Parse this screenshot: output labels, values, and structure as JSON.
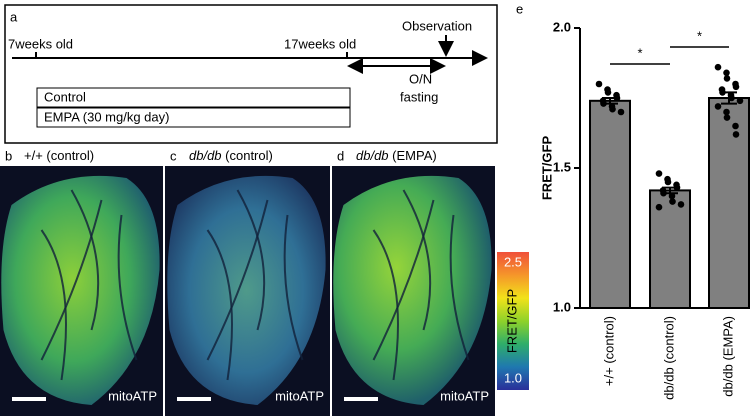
{
  "panel_a": {
    "label": "a",
    "start": "7weeks old",
    "mid": "17weeks old",
    "end": "Observation",
    "fasting_top": "O/N",
    "fasting_bottom": "fasting",
    "groups": [
      "Control",
      "EMPA (30 mg/kg day)"
    ]
  },
  "panels": [
    {
      "label": "b",
      "em": "",
      "text": "+/+ (control)",
      "footer": "mitoATP"
    },
    {
      "label": "c",
      "em": "db/db",
      "text": " (control)",
      "footer": "mitoATP"
    },
    {
      "label": "d",
      "em": "db/db",
      "text": " (EMPA)",
      "footer": "mitoATP"
    }
  ],
  "colorbar": {
    "title": "FRET/GFP",
    "ticks": [
      2.5,
      {
        "value": 1,
        "label": "1.0"
      }
    ],
    "colors": [
      "#2a2f9a",
      "#1f78b0",
      "#2fae6a",
      "#8fd22a",
      "#f2e21a",
      "#f5962a",
      "#f0503a"
    ]
  },
  "chart_data": {
    "type": "bar",
    "label": "e",
    "ylabel": "FRET/GFP",
    "categories": [
      "+/+ (control)",
      "db/db (control)",
      "db/db (EMPA)"
    ],
    "values": [
      1.74,
      1.42,
      1.75
    ],
    "errors": [
      0.01,
      0.01,
      0.02
    ],
    "color": "#808080",
    "points": [
      [
        1.8,
        1.78,
        1.77,
        1.76,
        1.75,
        1.74,
        1.73,
        1.72,
        1.71,
        1.7
      ],
      [
        1.48,
        1.46,
        1.45,
        1.44,
        1.43,
        1.42,
        1.41,
        1.4,
        1.38,
        1.37,
        1.36
      ],
      [
        1.86,
        1.84,
        1.82,
        1.8,
        1.79,
        1.78,
        1.77,
        1.76,
        1.75,
        1.74,
        1.72,
        1.7,
        1.68,
        1.65,
        1.62
      ]
    ],
    "significance": [
      {
        "from": 0,
        "to": 1,
        "label": "*"
      },
      {
        "from": 1,
        "to": 2,
        "label": "*"
      }
    ],
    "ylim": [
      1,
      2
    ],
    "yticks": [
      {
        "value": 1,
        "label": "1.0"
      },
      {
        "value": 1.5,
        "label": "1.5"
      },
      {
        "value": 2,
        "label": "2.0"
      }
    ]
  }
}
